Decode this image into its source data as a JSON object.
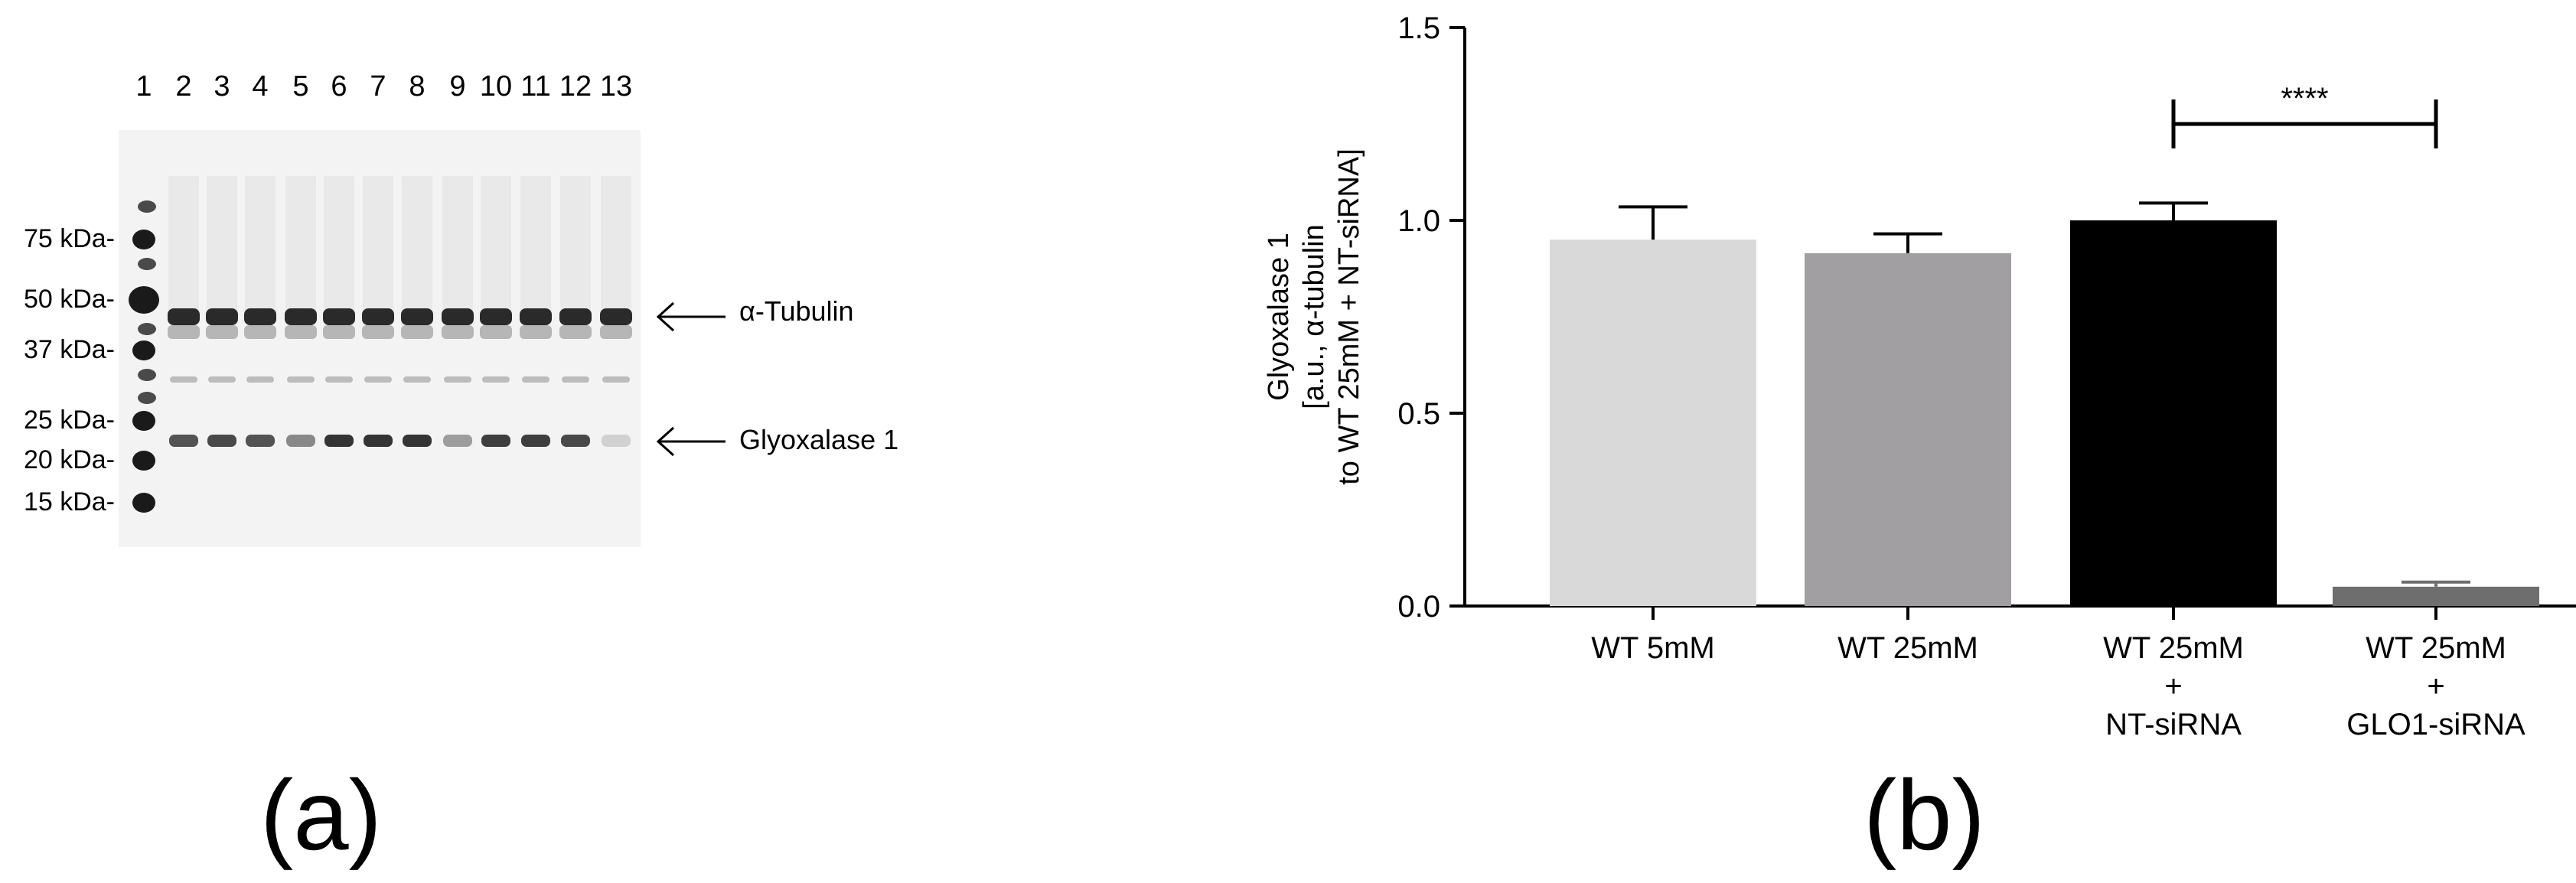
{
  "panel_a": {
    "caption": "(a)",
    "lane_numbers": [
      "1",
      "2",
      "3",
      "4",
      "5",
      "6",
      "7",
      "8",
      "9",
      "10",
      "11",
      "12",
      "13"
    ],
    "markers": [
      "75 kDa-",
      "50 kDa-",
      "37 kDa-",
      "25 kDa-",
      "20 kDa-",
      "15 kDa-"
    ],
    "band_labels": [
      "α-Tubulin",
      "Glyoxalase 1"
    ],
    "gly_intensity": [
      0,
      0.7,
      0.75,
      0.7,
      0.45,
      0.85,
      0.85,
      0.85,
      0.35,
      0.8,
      0.8,
      0.75,
      0.1
    ]
  },
  "panel_b": {
    "caption": "(b)",
    "significance": "****",
    "colors": [
      "#d9d9d9",
      "#a19fa2",
      "#000000",
      "#6e6e6e"
    ]
  },
  "chart_data": {
    "type": "bar",
    "categories": [
      "WT 5mM",
      "WT 25mM",
      "WT 25mM + NT-siRNA",
      "WT 25mM + GLO1-siRNA"
    ],
    "category_lines": [
      [
        "WT 5mM"
      ],
      [
        "WT 25mM"
      ],
      [
        "WT 25mM",
        "+",
        "NT-siRNA"
      ],
      [
        "WT 25mM",
        "+",
        "GLO1-siRNA"
      ]
    ],
    "values": [
      0.95,
      0.915,
      1.0,
      0.05
    ],
    "errors": [
      0.085,
      0.05,
      0.045,
      0.012
    ],
    "ylabel_lines": [
      "Glyoxalase 1",
      "[a.u., α-tubulin",
      "to WT 25mM + NT-siRNA]"
    ],
    "ylim": [
      0,
      1.5
    ],
    "yticks": [
      "0.0",
      "0.5",
      "1.0",
      "1.5"
    ],
    "ytick_values": [
      0,
      0.5,
      1.0,
      1.5
    ],
    "annotation": {
      "text": "****",
      "between": [
        2,
        3
      ]
    }
  }
}
